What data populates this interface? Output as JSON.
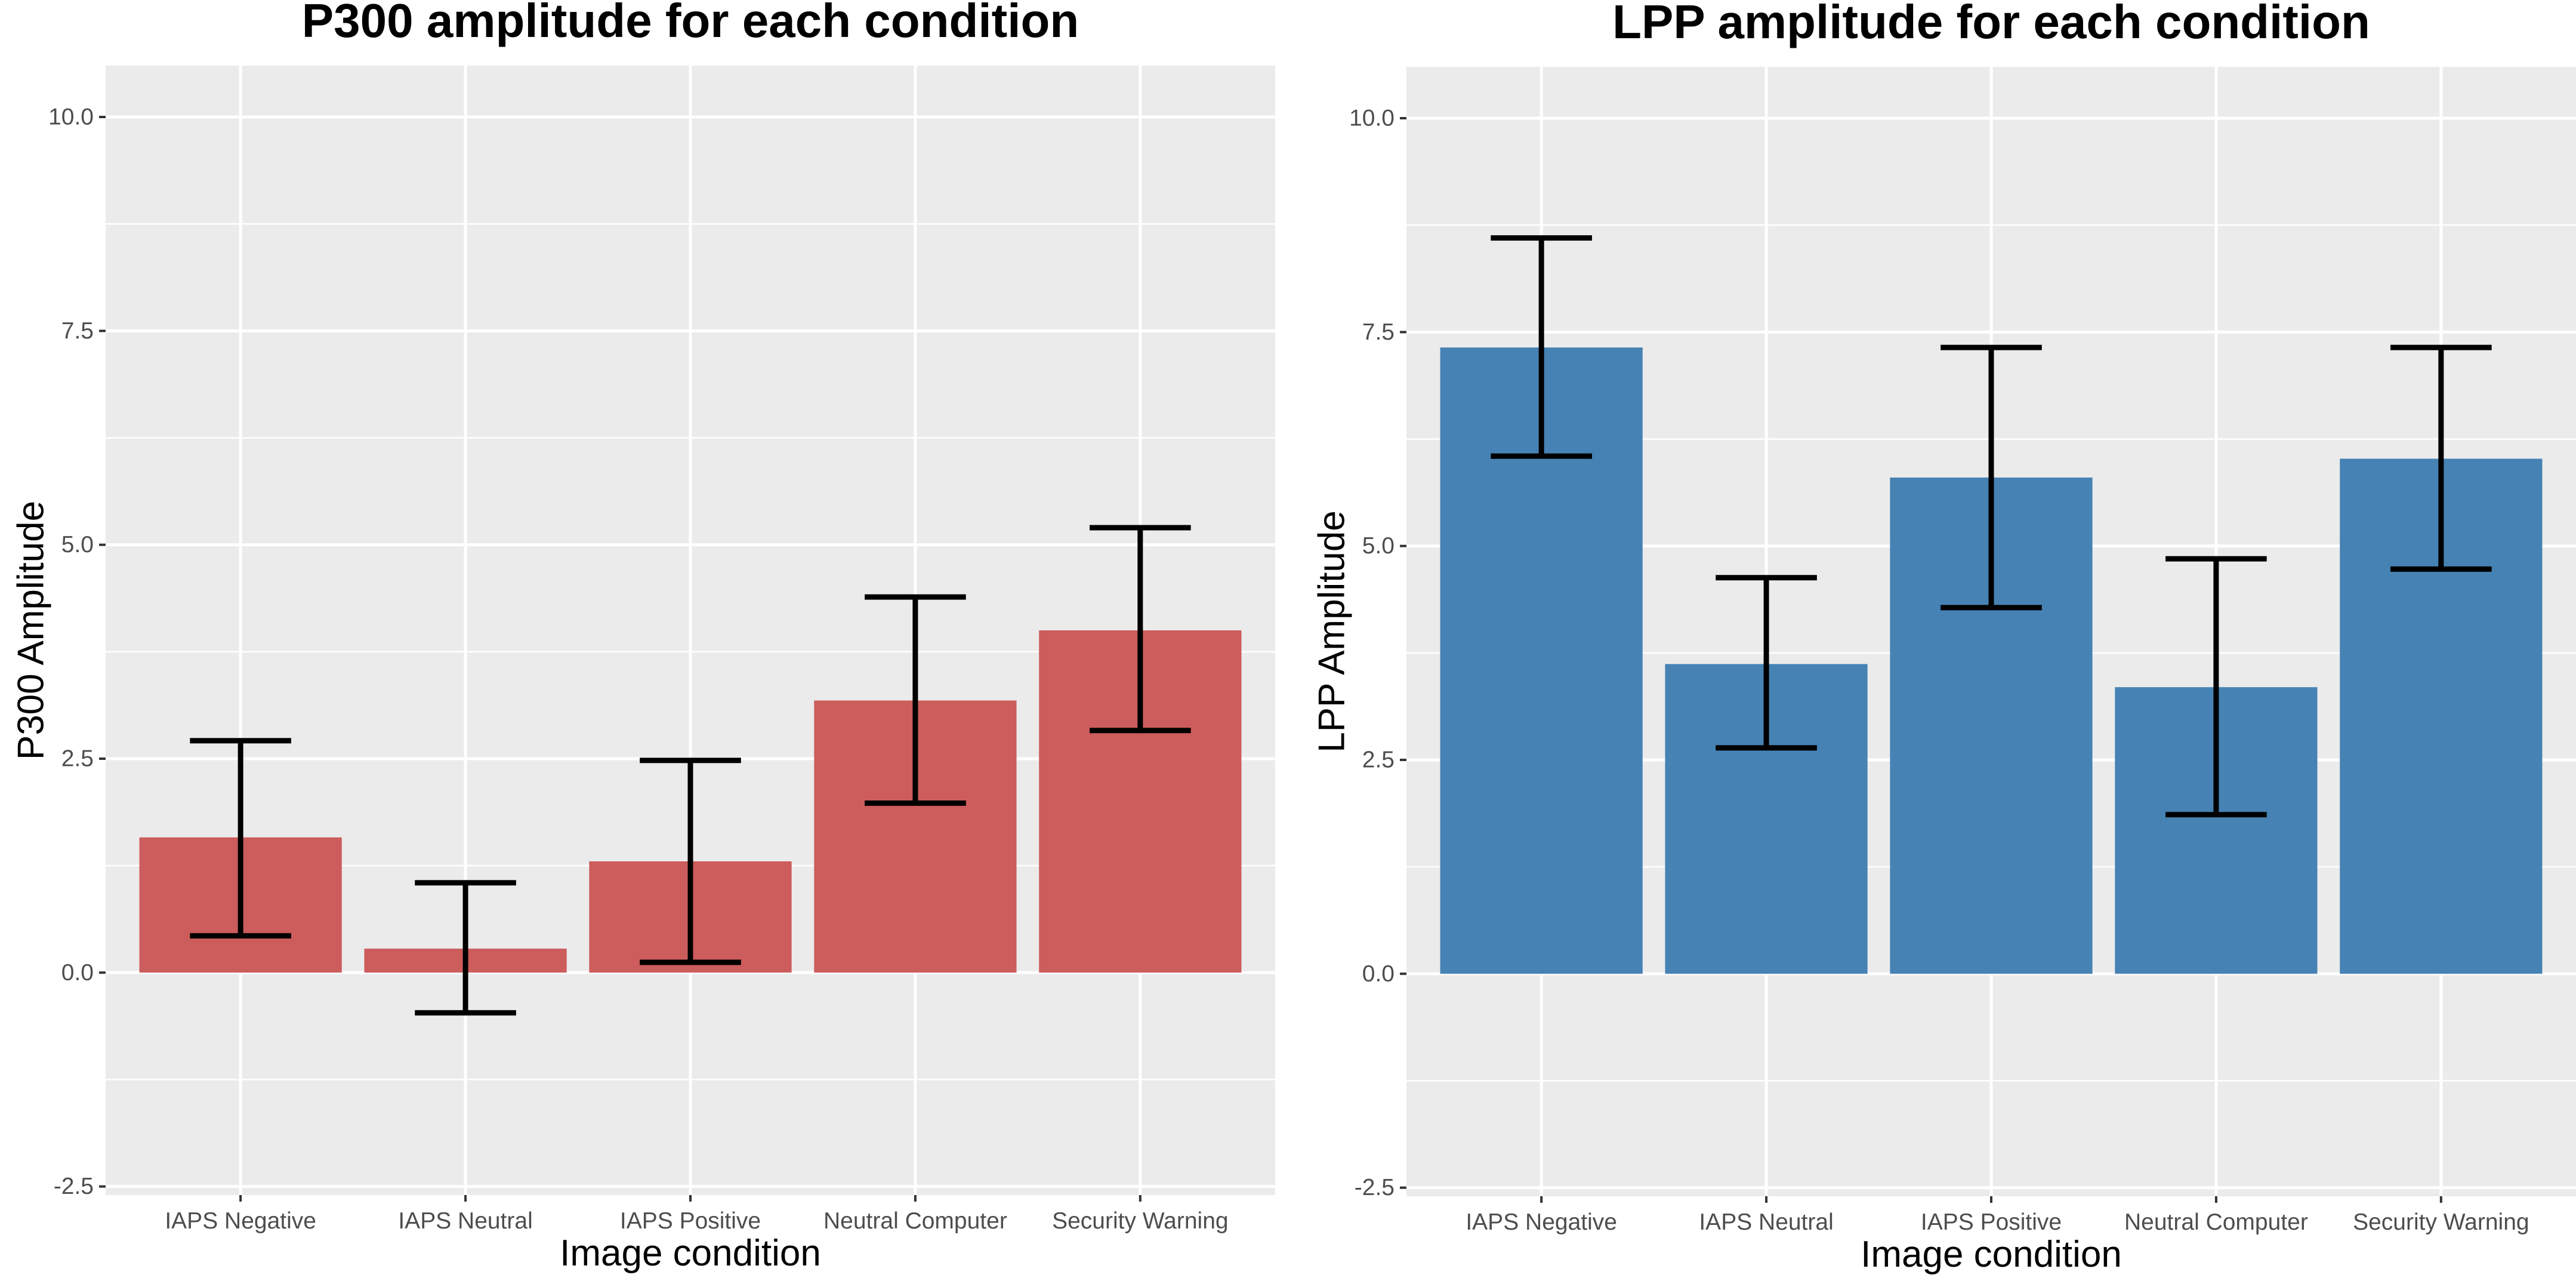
{
  "chart_data": [
    {
      "type": "bar",
      "title": "P300 amplitude for each condition",
      "xlabel": "Image condition",
      "ylabel": "P300 Amplitude",
      "categories": [
        "IAPS Negative",
        "IAPS Neutral",
        "IAPS Positive",
        "Neutral Computer",
        "Security Warning"
      ],
      "values": [
        1.58,
        0.28,
        1.3,
        3.18,
        4.0
      ],
      "error_low": [
        0.43,
        -0.47,
        0.12,
        1.98,
        2.83
      ],
      "error_high": [
        2.71,
        1.05,
        2.48,
        4.39,
        5.2
      ],
      "ylim": [
        -2.6,
        10.6
      ],
      "yticks": [
        -2.5,
        0.0,
        2.5,
        5.0,
        7.5,
        10.0
      ],
      "ytick_labels": [
        "-2.5",
        "0.0",
        "2.5",
        "5.0",
        "7.5",
        "10.0"
      ],
      "bar_color": "#cd5c5c",
      "grid": true
    },
    {
      "type": "bar",
      "title": "LPP amplitude for each condition",
      "xlabel": "Image condition",
      "ylabel": "LPP Amplitude",
      "categories": [
        "IAPS Negative",
        "IAPS Neutral",
        "IAPS Positive",
        "Neutral Computer",
        "Security Warning"
      ],
      "values": [
        7.32,
        3.62,
        5.8,
        3.35,
        6.02
      ],
      "error_low": [
        6.05,
        2.64,
        4.28,
        1.86,
        4.73
      ],
      "error_high": [
        8.6,
        4.63,
        7.32,
        4.85,
        7.32
      ],
      "ylim": [
        -2.6,
        10.6
      ],
      "yticks": [
        -2.5,
        0.0,
        2.5,
        5.0,
        7.5,
        10.0
      ],
      "ytick_labels": [
        "-2.5",
        "0.0",
        "2.5",
        "5.0",
        "7.5",
        "10.0"
      ],
      "bar_color": "#4682b4",
      "grid": true
    }
  ]
}
